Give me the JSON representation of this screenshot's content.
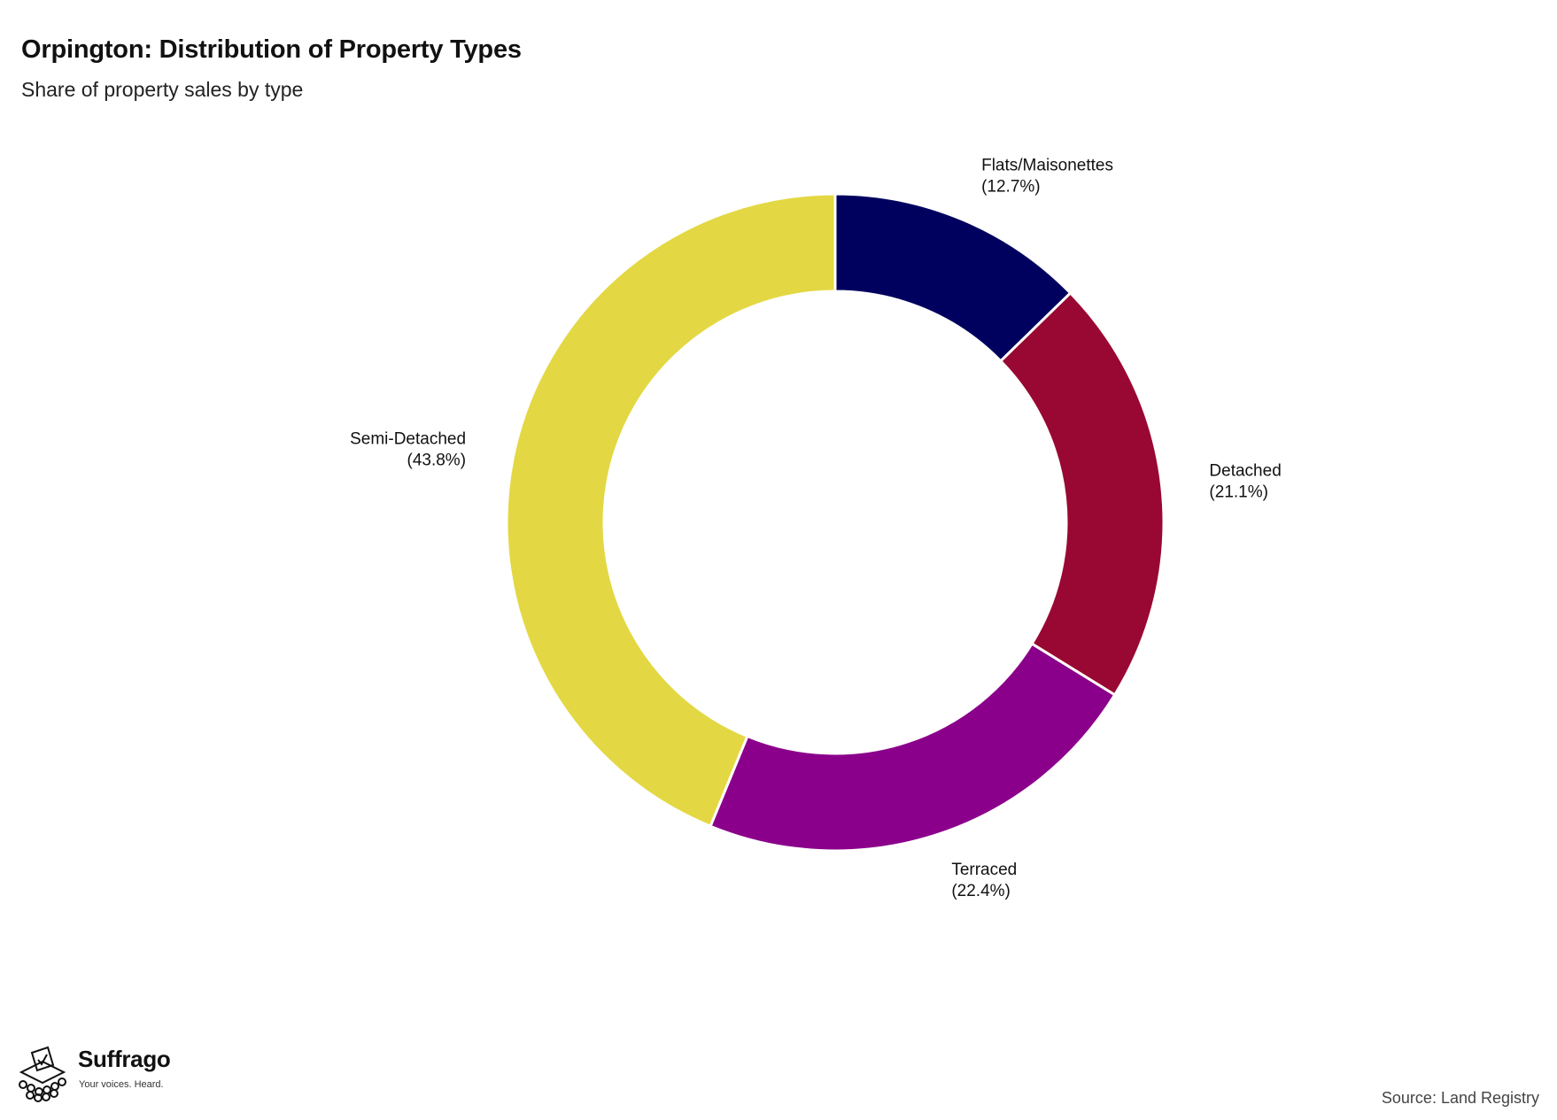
{
  "header": {
    "title": "Orpington: Distribution of Property Types",
    "subtitle": "Share of property sales by type"
  },
  "footer": {
    "source": "Source: Land Registry",
    "brand_name": "Suffrago",
    "brand_tagline": "Your voices. Heard."
  },
  "chart_data": {
    "type": "pie",
    "style": "donut",
    "title": "Orpington: Distribution of Property Types",
    "subtitle": "Share of property sales by type",
    "start_angle": "12 o'clock, clockwise",
    "slices": [
      {
        "label": "Flats/Maisonettes",
        "value": 12.7,
        "display": "(12.7%)",
        "color": "#00005f"
      },
      {
        "label": "Detached",
        "value": 21.1,
        "display": "(21.1%)",
        "color": "#990832"
      },
      {
        "label": "Terraced",
        "value": 22.4,
        "display": "(22.4%)",
        "color": "#8b008b"
      },
      {
        "label": "Semi-Detached",
        "value": 43.8,
        "display": "(43.8%)",
        "color": "#e3d843"
      }
    ],
    "legend": "none (direct labels)"
  }
}
